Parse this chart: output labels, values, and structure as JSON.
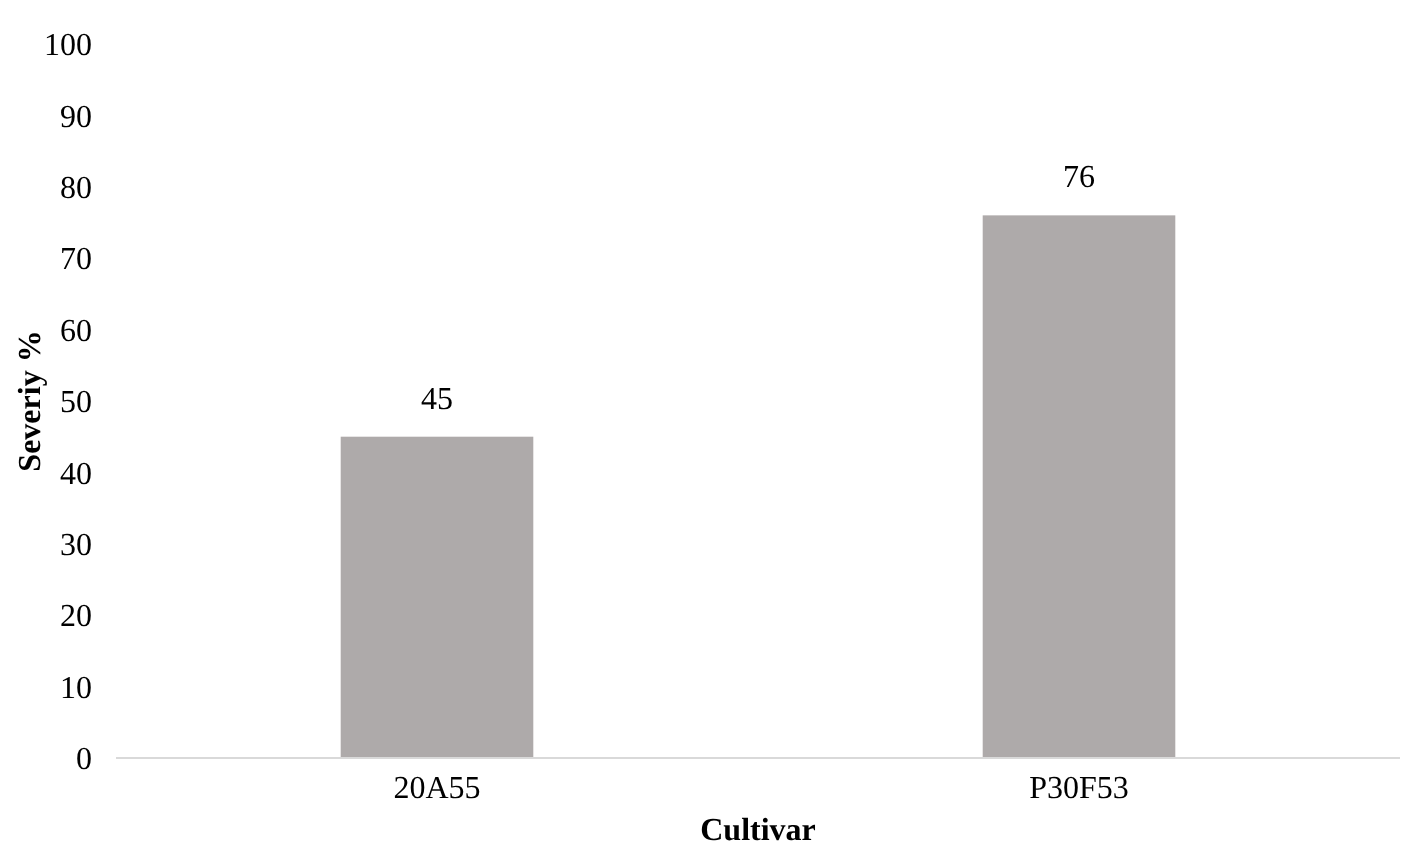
{
  "chart_data": {
    "type": "bar",
    "xlabel": "Cultivar",
    "ylabel": "Severiy %",
    "categories": [
      "20A55",
      "P30F53"
    ],
    "values": [
      45,
      76
    ],
    "color": "#aeaaaa",
    "ylim": [
      0,
      100
    ],
    "yticks": [
      0,
      10,
      20,
      30,
      40,
      50,
      60,
      70,
      80,
      90,
      100
    ],
    "data_labels": true,
    "grid": false
  }
}
